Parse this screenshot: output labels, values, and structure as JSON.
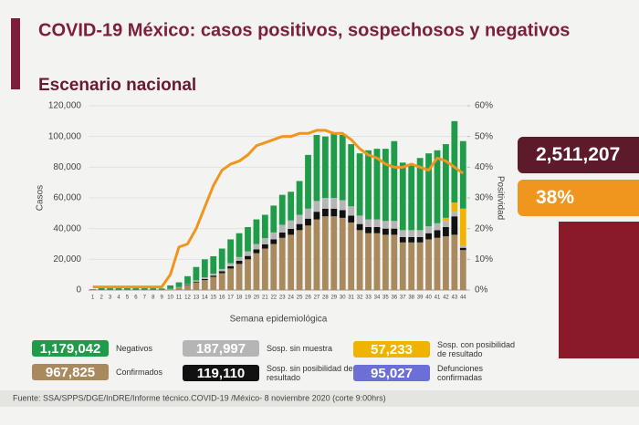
{
  "chart_data": {
    "type": "bar",
    "title": "COVID-19 México: casos positivos, sospechosos y negativos",
    "subtitle": "Escenario nacional",
    "y_label": "Casos",
    "y2_label": "Positividad",
    "x_label": "Semana epidemiológica",
    "stacked": true,
    "categories": [
      1,
      2,
      3,
      4,
      5,
      6,
      7,
      8,
      9,
      10,
      11,
      12,
      13,
      14,
      15,
      16,
      17,
      18,
      19,
      20,
      21,
      22,
      23,
      24,
      25,
      26,
      27,
      28,
      29,
      30,
      31,
      32,
      33,
      34,
      35,
      36,
      37,
      38,
      39,
      40,
      41,
      42,
      43,
      44
    ],
    "ylim": [
      0,
      120000
    ],
    "yticks": [
      0,
      {
        "value": 20000,
        "label": "20,000"
      },
      {
        "value": 40000,
        "label": "40,000"
      },
      {
        "value": 60000,
        "label": "60,000"
      },
      {
        "value": 80000,
        "label": "80,000"
      },
      {
        "value": 100000,
        "label": "100,000"
      },
      {
        "value": 120000,
        "label": "120,000"
      }
    ],
    "y2lim": [
      0,
      60
    ],
    "y2ticks": [
      {
        "value": 0,
        "label": "0%"
      },
      {
        "value": 10,
        "label": "10%"
      },
      {
        "value": 20,
        "label": "20%"
      },
      {
        "value": 30,
        "label": "30%"
      },
      {
        "value": 40,
        "label": "40%"
      },
      {
        "value": 50,
        "label": "50%"
      },
      {
        "value": 60,
        "label": "60%"
      }
    ],
    "grid": true,
    "series": [
      {
        "name": "Confirmados",
        "total": "967,825",
        "color": "#a88a5e",
        "values": [
          0,
          0,
          0,
          0,
          0,
          0,
          0,
          0,
          0,
          500,
          1500,
          3000,
          5000,
          6500,
          8500,
          11000,
          14000,
          17000,
          20000,
          24000,
          27000,
          30000,
          34000,
          36000,
          39000,
          42000,
          46000,
          48000,
          48000,
          47000,
          44000,
          39000,
          37000,
          37000,
          36000,
          36000,
          31000,
          31000,
          31000,
          33000,
          34000,
          35000,
          36000,
          26000
        ]
      },
      {
        "name": "Sosp. sin posibilidad de resultado",
        "total": "119,110",
        "color": "#111111",
        "values": [
          0,
          0,
          0,
          0,
          0,
          0,
          0,
          0,
          0,
          0,
          100,
          300,
          500,
          700,
          900,
          1200,
          1500,
          2000,
          2200,
          2500,
          2800,
          3000,
          3500,
          3800,
          4000,
          4500,
          5000,
          5000,
          5000,
          5000,
          4500,
          4000,
          4000,
          4000,
          4000,
          4000,
          3500,
          3500,
          3500,
          4000,
          5000,
          6000,
          12000,
          1500
        ]
      },
      {
        "name": "Sosp. sin muestra",
        "total": "187,997",
        "color": "#b5b5b5",
        "values": [
          0,
          0,
          100,
          100,
          100,
          100,
          100,
          100,
          100,
          200,
          300,
          500,
          800,
          1000,
          1200,
          1500,
          2000,
          2500,
          3000,
          3500,
          4000,
          4500,
          5000,
          5500,
          6000,
          6500,
          7000,
          7000,
          7000,
          6500,
          6000,
          5500,
          5000,
          5000,
          5000,
          5000,
          4500,
          4500,
          4500,
          4500,
          4500,
          4000,
          3000,
          1500
        ]
      },
      {
        "name": "Sosp. con posibilidad de resultado",
        "total": "57,233",
        "color": "#f0b400",
        "values": [
          0,
          0,
          0,
          0,
          0,
          0,
          0,
          0,
          0,
          0,
          0,
          0,
          0,
          0,
          0,
          0,
          0,
          0,
          0,
          0,
          0,
          0,
          0,
          0,
          0,
          0,
          0,
          0,
          0,
          0,
          0,
          0,
          0,
          0,
          0,
          0,
          0,
          0,
          0,
          0,
          0,
          2000,
          6000,
          24000
        ]
      },
      {
        "name": "Negativos",
        "total": "1,179,042",
        "color": "#1e9c4a",
        "values": [
          500,
          1500,
          1900,
          2400,
          1900,
          1900,
          1400,
          1400,
          900,
          2300,
          3100,
          5200,
          8700,
          11800,
          11400,
          13300,
          15500,
          15500,
          15800,
          16000,
          15200,
          17500,
          19500,
          18700,
          22000,
          35000,
          43000,
          40000,
          42000,
          42500,
          40500,
          40500,
          45000,
          46000,
          47000,
          52000,
          44000,
          43000,
          47000,
          47500,
          47500,
          48000,
          53000,
          44000
        ]
      }
    ],
    "line": {
      "axis": "y2",
      "color": "#f0951d",
      "values": [
        1,
        1,
        1,
        1,
        1,
        1,
        1,
        1,
        1,
        5,
        14,
        15,
        20,
        27,
        34,
        39,
        41,
        42,
        44,
        47,
        48,
        49,
        50,
        50,
        51,
        51,
        52,
        52,
        51,
        51,
        49,
        46,
        44,
        43,
        41,
        40,
        40,
        41,
        40,
        39,
        43,
        42,
        40,
        38
      ]
    },
    "extra_legend": {
      "name": "Defunciones confirmadas",
      "total": "95,027",
      "color": "#6b6fd6"
    },
    "kpis": [
      {
        "text": "2,511,207",
        "color": "#5c1a2b"
      },
      {
        "text": "38%",
        "color": "#f0951d"
      }
    ],
    "source": "Fuente: SSA/SPPS/DGE/InDRE/Informe técnico.COVID-19 /México- 8 noviembre 2020 (corte 9:00hrs)"
  }
}
